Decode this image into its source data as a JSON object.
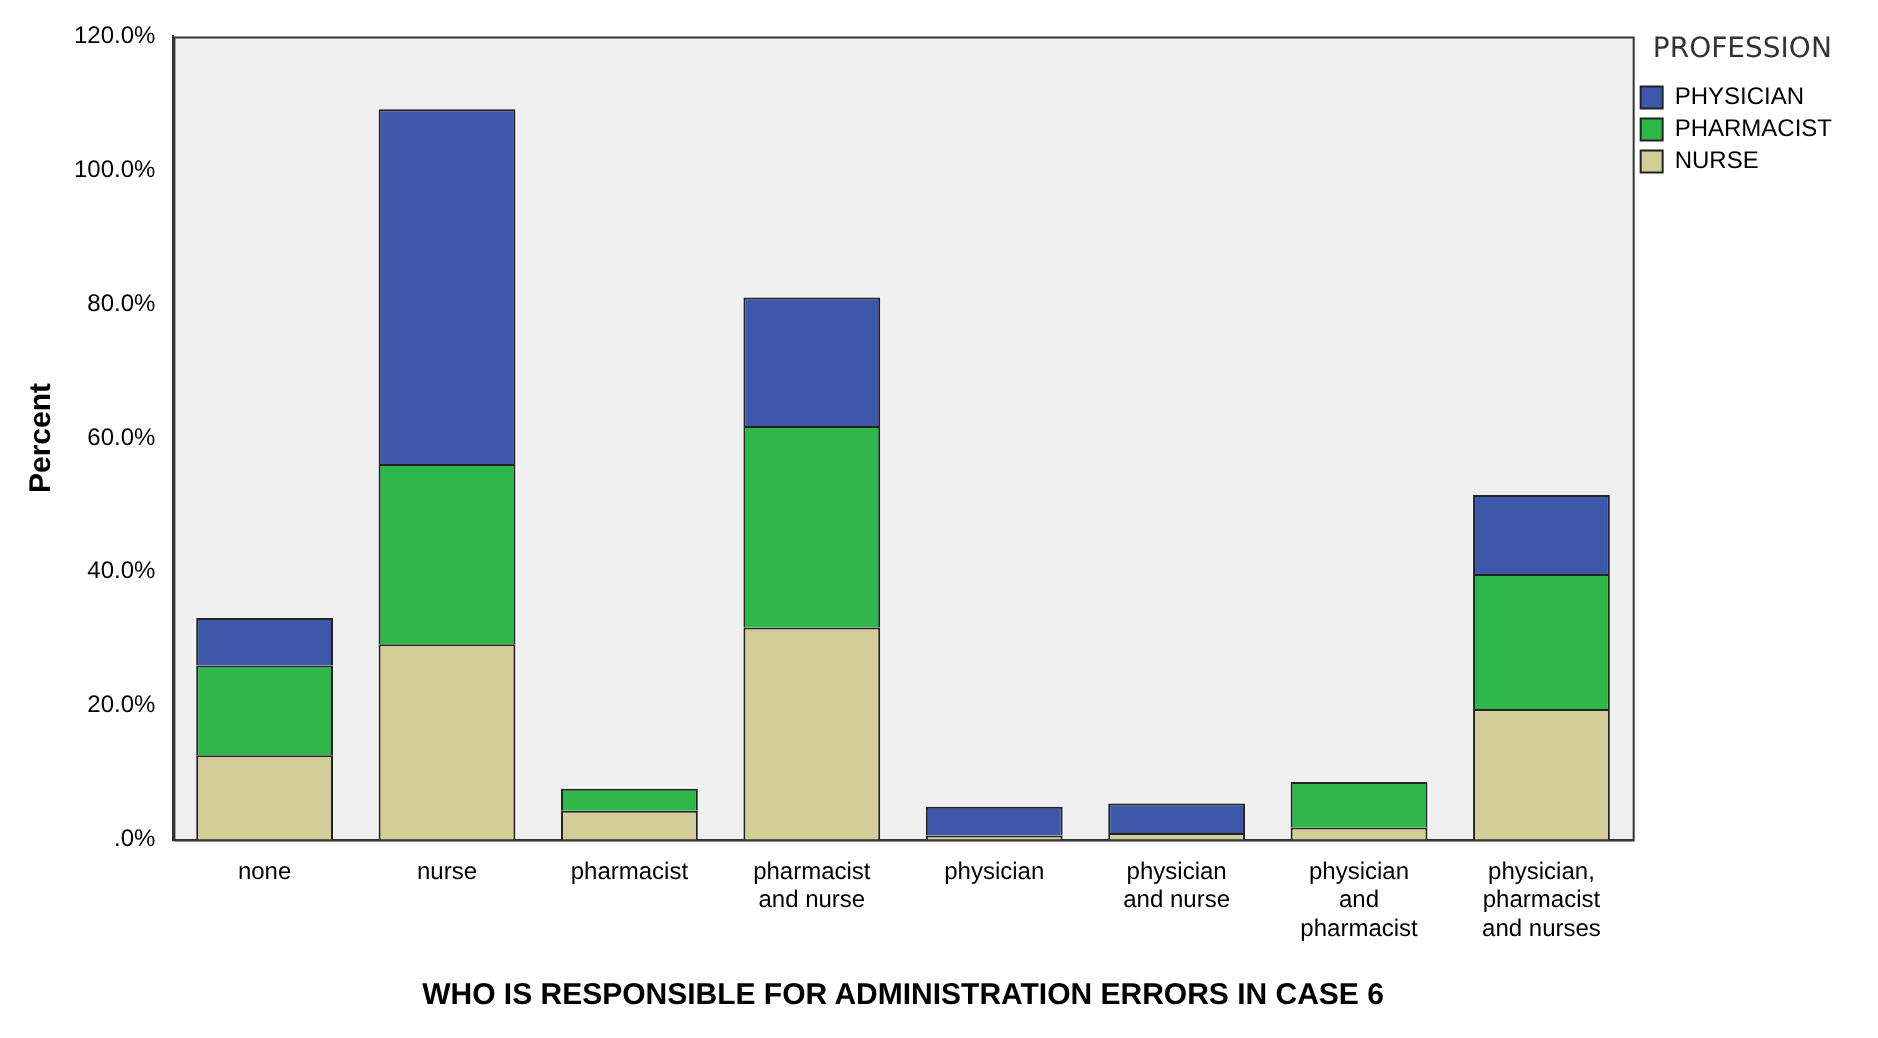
{
  "chart_data": {
    "type": "bar",
    "stacked": true,
    "xlabel": "WHO IS RESPONSIBLE FOR ADMINISTRATION ERRORS IN CASE 6",
    "ylabel": "Percent",
    "legend_title": "PROFESSION",
    "legend": "top right",
    "grid": false,
    "categories": [
      "none",
      "nurse",
      "pharmacist",
      "pharmacist and nurse",
      "physician",
      "physician and nurse",
      "physician and pharmacist",
      "physician, pharmacist and nurses"
    ],
    "ylim": [
      0,
      120
    ],
    "yticks": [
      {
        "value": 0,
        "label": ".0%"
      },
      {
        "value": 20,
        "label": "20.0%"
      },
      {
        "value": 40,
        "label": "40.0%"
      },
      {
        "value": 60,
        "label": "60.0%"
      },
      {
        "value": 80,
        "label": "80.0%"
      },
      {
        "value": 100,
        "label": "100.0%"
      },
      {
        "value": 120,
        "label": "120.0%"
      }
    ],
    "series": [
      {
        "name": "NURSE",
        "color": "#d3cd98",
        "values": [
          12.6,
          29.2,
          4.3,
          31.7,
          0.6,
          1.0,
          1.8,
          19.5
        ]
      },
      {
        "name": "PHARMACIST",
        "color": "#2fb84a",
        "values": [
          13.4,
          26.9,
          3.3,
          30.1,
          0,
          0,
          6.8,
          20.2
        ]
      },
      {
        "name": "PHYSICIAN",
        "color": "#3d58ab",
        "values": [
          7.1,
          53.0,
          0,
          19.2,
          4.3,
          4.4,
          0,
          11.8
        ]
      }
    ]
  }
}
